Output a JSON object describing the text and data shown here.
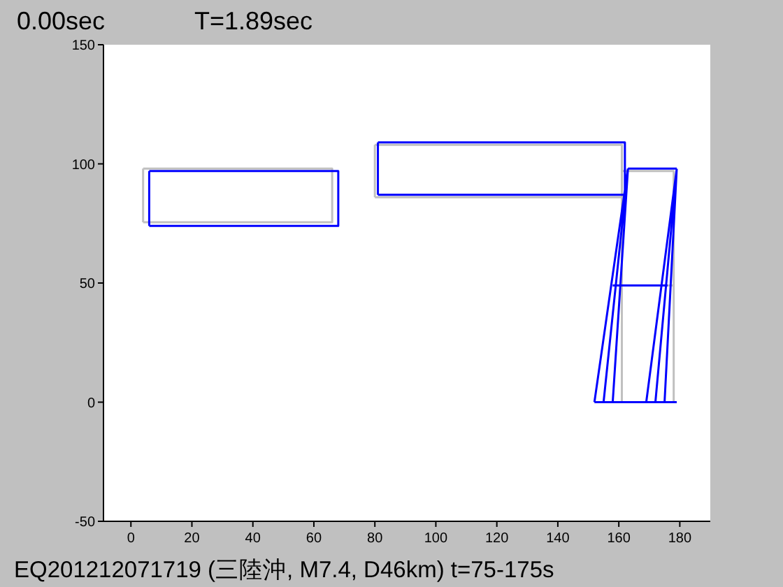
{
  "chart_data": {
    "type": "line",
    "title": "0.00sec",
    "subtitle": "T=1.89sec",
    "annotations": [
      "EQ201212071719 (三陸沖, M7.4, D46km) t=75-175s"
    ],
    "xlim": [
      -9,
      190
    ],
    "xticks": [
      0,
      20,
      40,
      60,
      80,
      100,
      120,
      140,
      160,
      180
    ],
    "ylim": [
      -50,
      150
    ],
    "yticks": [
      -50,
      0,
      50,
      100,
      150
    ],
    "grid": false,
    "marker": "none",
    "line_style": "solid",
    "series": [
      {
        "color": "#c0c0c0",
        "x": [
          4,
          66,
          66,
          4,
          null,
          4,
          4,
          null,
          80,
          161,
          161,
          80,
          null,
          80,
          80,
          null,
          161,
          178,
          178,
          161,
          null,
          161,
          161,
          null,
          161,
          178
        ],
        "values": [
          75.5,
          75.5,
          98,
          98,
          null,
          98,
          75.5,
          null,
          86,
          86,
          108,
          108,
          null,
          108,
          86,
          null,
          97,
          97,
          0,
          0,
          null,
          0,
          97,
          null,
          49,
          49
        ]
      },
      {
        "color": "#0000ff",
        "x": [
          6,
          68,
          68,
          6,
          null,
          6,
          6,
          null,
          81,
          162,
          162,
          81,
          null,
          81,
          81,
          null,
          163,
          179,
          null,
          163,
          152,
          null,
          163,
          155,
          null,
          163,
          158,
          null,
          179,
          169,
          null,
          179,
          172,
          null,
          179,
          175,
          null,
          152,
          179,
          null,
          158,
          176
        ],
        "values": [
          74,
          74,
          97,
          97,
          null,
          97,
          74,
          null,
          87,
          87,
          109,
          109,
          null,
          109,
          87,
          null,
          98,
          98,
          null,
          98,
          0,
          null,
          98,
          0,
          null,
          98,
          0,
          null,
          98,
          0,
          null,
          98,
          0,
          null,
          98,
          0,
          null,
          0,
          0,
          null,
          49,
          49
        ]
      }
    ]
  }
}
